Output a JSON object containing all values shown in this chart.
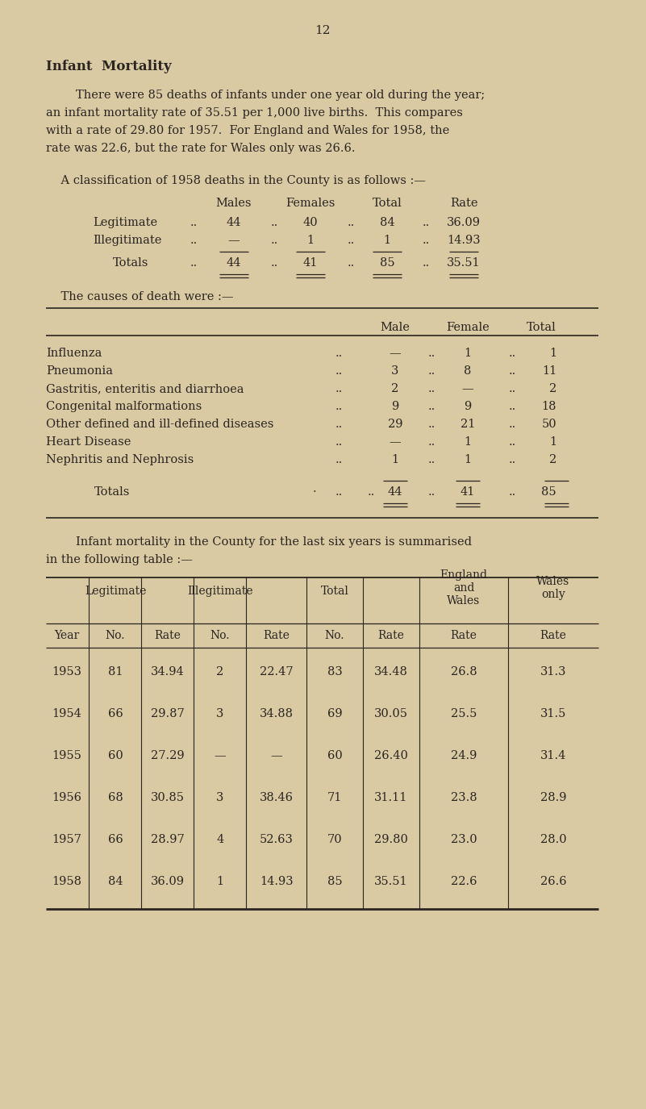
{
  "bg_color": "#d9caa4",
  "text_color": "#2a2520",
  "page_number": "12",
  "title": "Infant  Mortality",
  "intro_lines": [
    "        There were 85 deaths of infants under one year old during the year;",
    "an infant mortality rate of 35.51 per 1,000 live births.  This compares",
    "with a rate of 29.80 for 1957.  For England and Wales for 1958, the",
    "rate was 22.6, but the rate for Wales only was 26.6."
  ],
  "class_intro": "    A classification of 1958 deaths in the County is as follows :—",
  "summary_intro_1": "        Infant mortality in the County for the last six years is summarised",
  "summary_intro_2": "in the following table :—",
  "causes_intro": "    The causes of death were :—",
  "summary_rows": [
    [
      "1953",
      "81",
      "34.94",
      "2",
      "22.47",
      "83",
      "34.48",
      "26.8",
      "31.3"
    ],
    [
      "1954",
      "66",
      "29.87",
      "3",
      "34.88",
      "69",
      "30.05",
      "25.5",
      "31.5"
    ],
    [
      "1955",
      "60",
      "27.29",
      "—",
      "—",
      "60",
      "26.40",
      "24.9",
      "31.4"
    ],
    [
      "1956",
      "68",
      "30.85",
      "3",
      "38.46",
      "71",
      "31.11",
      "23.8",
      "28.9"
    ],
    [
      "1957",
      "66",
      "28.97",
      "4",
      "52.63",
      "70",
      "29.80",
      "23.0",
      "28.0"
    ],
    [
      "1958",
      "84",
      "36.09",
      "1",
      "14.93",
      "85",
      "35.51",
      "22.6",
      "26.6"
    ]
  ]
}
